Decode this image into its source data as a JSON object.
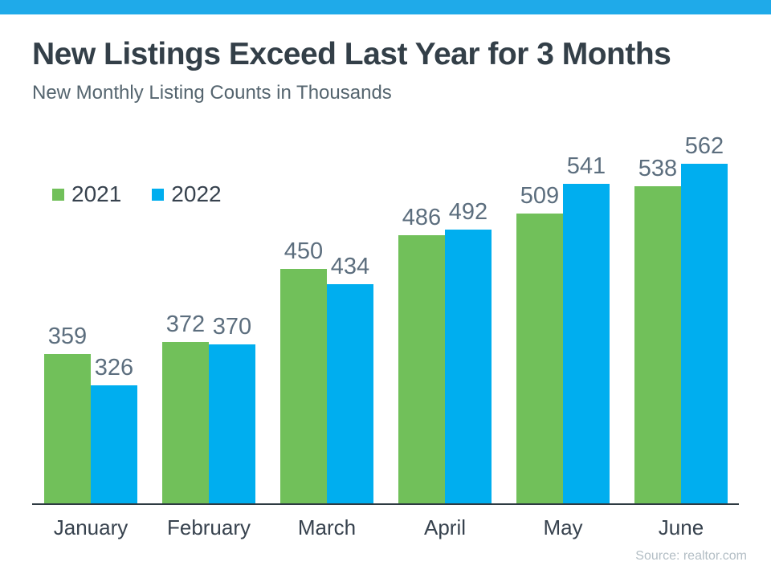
{
  "page": {
    "title": "New Listings Exceed Last Year for 3 Months",
    "subtitle": "New Monthly Listing Counts in Thousands",
    "source": "Source: realtor.com"
  },
  "colors": {
    "top_accent": "#1FAAE9",
    "series_2021": "#71C05A",
    "series_2022": "#00AEEF",
    "title_text": "#333F48",
    "subtitle_text": "#55656F",
    "value_label_text": "#5C6E7E",
    "month_label_text": "#37424E",
    "axis_line": "#2E3A42",
    "source_text": "#B3BEC5"
  },
  "legend": {
    "items": [
      {
        "label": "2021",
        "color": "#71C05A"
      },
      {
        "label": "2022",
        "color": "#00AEEF"
      }
    ]
  },
  "chart_data": {
    "type": "bar",
    "title": "New Listings Exceed Last Year for 3 Months",
    "subtitle": "New Monthly Listing Counts in Thousands",
    "categories": [
      "January",
      "February",
      "March",
      "April",
      "May",
      "June"
    ],
    "series": [
      {
        "name": "2021",
        "color": "#71C05A",
        "values": [
          359,
          372,
          450,
          486,
          509,
          538
        ]
      },
      {
        "name": "2022",
        "color": "#00AEEF",
        "values": [
          326,
          370,
          434,
          492,
          541,
          562
        ]
      }
    ],
    "ylim": [
      200,
      600
    ],
    "grid": false,
    "legend_position": "top-left",
    "value_labels": true,
    "xlabel": "",
    "ylabel": "",
    "source": "Source: realtor.com"
  }
}
